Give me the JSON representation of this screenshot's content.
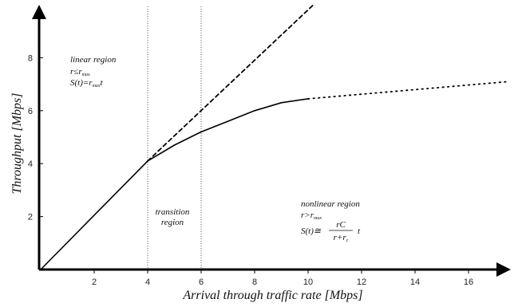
{
  "chart_data": {
    "type": "line",
    "xlabel": "Arrival through traffic rate [Mbps]",
    "ylabel": "Throughput [Mbps]",
    "xlim": [
      0,
      17.5
    ],
    "ylim": [
      0,
      10
    ],
    "x_ticks": [
      "2",
      "4",
      "6",
      "8",
      "10",
      "12",
      "14",
      "16"
    ],
    "y_ticks": [
      "2",
      "4",
      "6",
      "8"
    ],
    "vlines": [
      4,
      6
    ],
    "series": [
      {
        "style": "solid",
        "x": [
          0,
          4,
          5,
          6,
          7,
          8,
          9,
          10
        ],
        "y": [
          0,
          4.1,
          4.7,
          5.2,
          5.6,
          6.0,
          6.3,
          6.45
        ]
      },
      {
        "style": "dashed",
        "x": [
          4,
          10.2
        ],
        "y": [
          4.1,
          10
        ]
      },
      {
        "style": "dotted",
        "x": [
          10,
          17.5
        ],
        "y": [
          6.45,
          7.1
        ]
      }
    ],
    "annotations": {
      "linear": {
        "title": "linear region",
        "line2_main": "r≤r",
        "line2_sub": "max",
        "line3_main": "S(t)=r",
        "line3_sub": "max",
        "line3_tail": "t"
      },
      "transition": {
        "line1": "transition",
        "line2": "region"
      },
      "nonlinear": {
        "title": "nonlinear region",
        "line2_main": "r>r",
        "line2_sub": "max",
        "lhs": "S(t)≅",
        "numerator": "rC",
        "denominator_main": "r+r",
        "denominator_sub": "c",
        "tail": "t"
      }
    }
  }
}
